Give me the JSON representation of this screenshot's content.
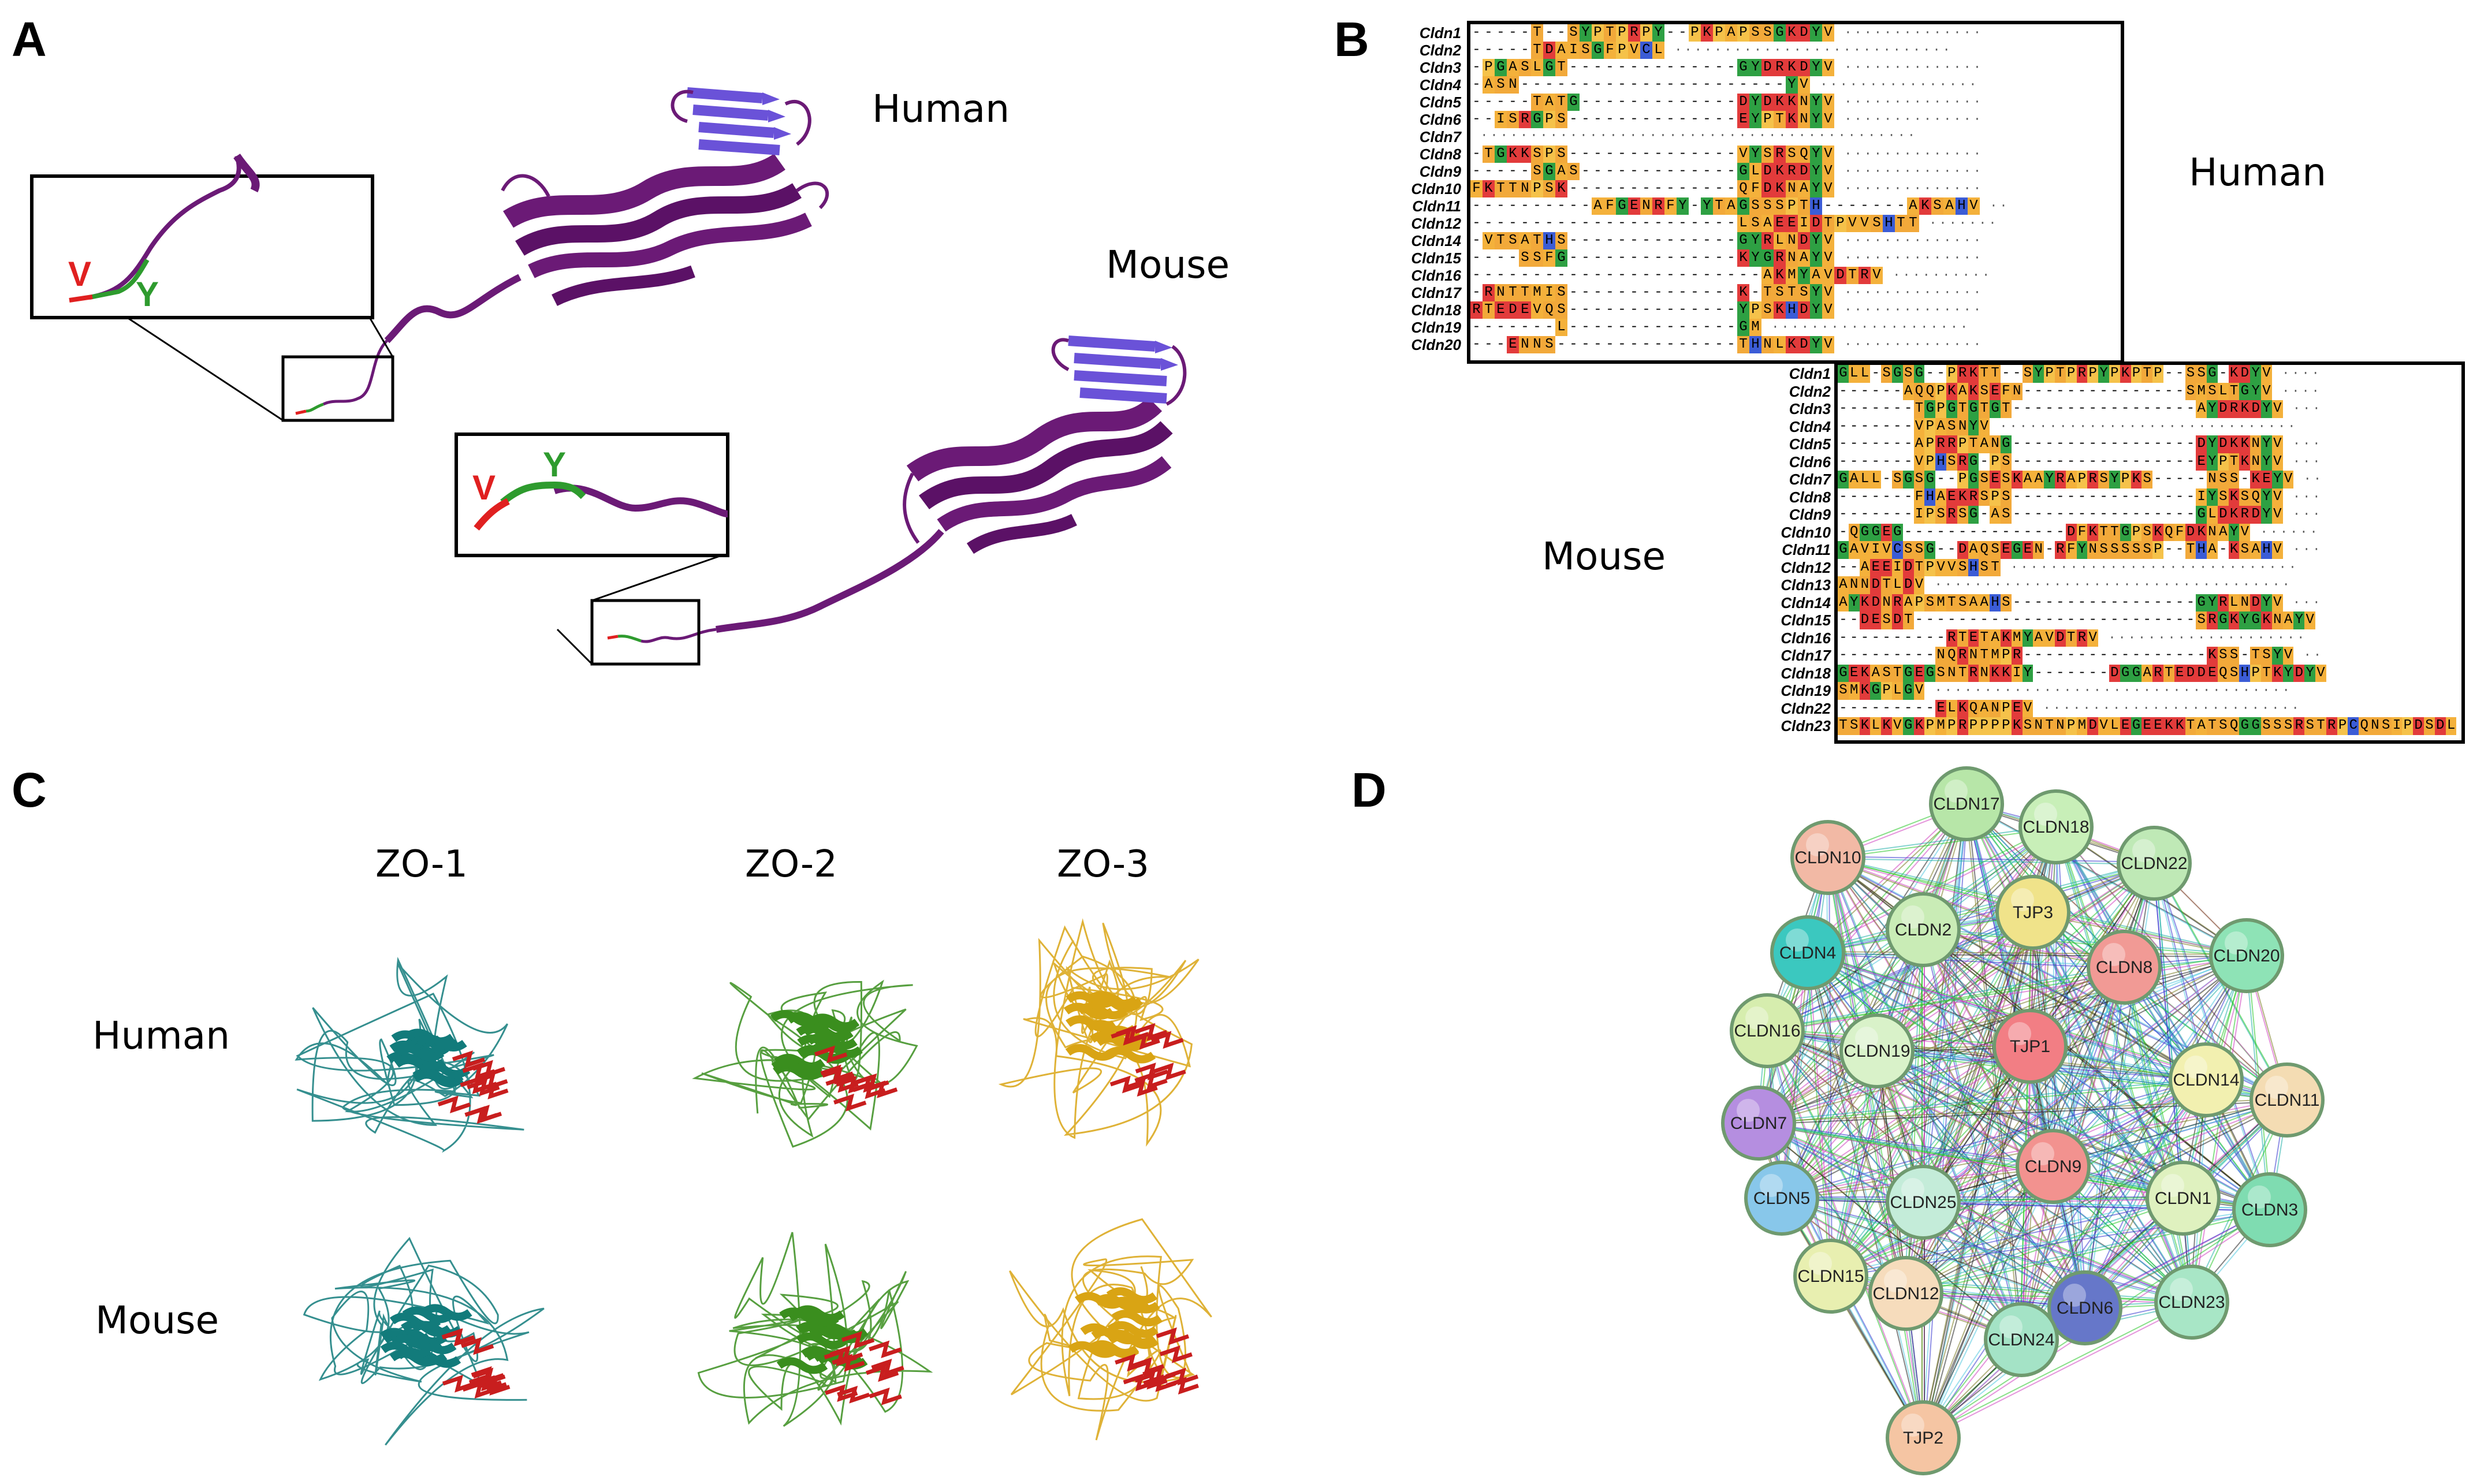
{
  "panels": {
    "A": "A",
    "B": "B",
    "C": "C",
    "D": "D"
  },
  "panel_a": {
    "human_label": "Human",
    "mouse_label": "Mouse",
    "inset_human": {
      "v": "V",
      "y": "Y"
    },
    "inset_mouse": {
      "v": "V",
      "y": "Y"
    }
  },
  "panel_b": {
    "human_label": "Human",
    "mouse_label": "Mouse",
    "human_rows": [
      {
        "name": "Cldn1",
        "seq": "-----T--SYPTPRPY--PKPAPSSGKDYV"
      },
      {
        "name": "Cldn2",
        "seq": "-----TDAISGFPVCL"
      },
      {
        "name": "Cldn3",
        "seq": "-PGASLGT--------------GYDRKDYV"
      },
      {
        "name": "Cldn4",
        "seq": "-ASN----------------------YV"
      },
      {
        "name": "Cldn5",
        "seq": "-----TATG-------------DYDKKNYV"
      },
      {
        "name": "Cldn6",
        "seq": "--ISRGPS--------------EYPTKNYV"
      },
      {
        "name": "Cldn7",
        "seq": ""
      },
      {
        "name": "Cldn8",
        "seq": "-TGKKSPS--------------VYSRSQYV"
      },
      {
        "name": "Cldn9",
        "seq": "-----SGAS-------------GLDKRDYV"
      },
      {
        "name": "Cldn10",
        "seq": "FKTTNPSK--------------QFDKNAYV"
      },
      {
        "name": "Cldn11",
        "seq": "----------AFGENRFY-YTAGSSSPTH-------AKSAHV"
      },
      {
        "name": "Cldn12",
        "seq": "----------------------LSAEEIDTPVVSHTT"
      },
      {
        "name": "Cldn14",
        "seq": "-VTSATHS--------------GYRLNDYV"
      },
      {
        "name": "Cldn15",
        "seq": "----SSFG--------------KYGRNAYV"
      },
      {
        "name": "Cldn16",
        "seq": "------------------------AKMYAVDTRV"
      },
      {
        "name": "Cldn17",
        "seq": "-RNTTMIS--------------K-TSTSYV"
      },
      {
        "name": "Cldn18",
        "seq": "RTEDEVQS--------------YPSKHDYV"
      },
      {
        "name": "Cldn19",
        "seq": "-------L--------------GM"
      },
      {
        "name": "Cldn20",
        "seq": "---ENNS---------------THNLKDYV"
      }
    ],
    "mouse_rows": [
      {
        "name": "Cldn1",
        "seq": "GLL-SGSG--PRKTT--SYPTPRPYPKPTP--SSG-KDYV"
      },
      {
        "name": "Cldn2",
        "seq": "------AQQPKAKSEFN---------------SMSLTGYV"
      },
      {
        "name": "Cldn3",
        "seq": "-------TGPGTGTGT-----------------AYDRKDYV"
      },
      {
        "name": "Cldn4",
        "seq": "-------VPASNYV"
      },
      {
        "name": "Cldn5",
        "seq": "-------APRRPTANG-----------------DYDKKNYV"
      },
      {
        "name": "Cldn6",
        "seq": "-------VPHSRG-PS-----------------EYPTKNYV"
      },
      {
        "name": "Cldn7",
        "seq": "GALL-SGSG--PGSESKAAYRAPRSYPKS-----NSS-KEYV"
      },
      {
        "name": "Cldn8",
        "seq": "-------FHAEKRSPS-----------------IYSKSQYV"
      },
      {
        "name": "Cldn9",
        "seq": "-------IPSRSG-AS-----------------GLDKRDYV"
      },
      {
        "name": "Cldn10",
        "seq": "-QGGEG---------------DFKTTGPSKQFDKNAYV"
      },
      {
        "name": "Cldn11",
        "seq": "GAVIVCSSG--DAQSEGEN-RFYNSSSSSP--THA-KSAHV"
      },
      {
        "name": "Cldn12",
        "seq": "--AEEIDTPVVSHST"
      },
      {
        "name": "Cldn13",
        "seq": "ANNDTLDV"
      },
      {
        "name": "Cldn14",
        "seq": "AYKDNRAPSMTSAAHS-----------------GYRLNDYV"
      },
      {
        "name": "Cldn15",
        "seq": "--DESDT--------------------------SRGKYGKNAYV"
      },
      {
        "name": "Cldn16",
        "seq": "----------RTETAKMYAVDTRV"
      },
      {
        "name": "Cldn17",
        "seq": "---------NQRNTMPR-----------------KSS-TSYV"
      },
      {
        "name": "Cldn18",
        "seq": "GEKASTGEGSNTRNKKIY-------DGGARTEDDEQSHPTKYDYV"
      },
      {
        "name": "Cldn19",
        "seq": "SMKGPLGV"
      },
      {
        "name": "Cldn22",
        "seq": "---------ELKQANPEV"
      },
      {
        "name": "Cldn23",
        "seq": "TSKLKVGKPMPRPPPPKSNTNPMDVLEGEEKKTATSQGGSSSRSTRPCQNSIPDSDL"
      }
    ]
  },
  "panel_c": {
    "columns": [
      "ZO-1",
      "ZO-2",
      "ZO-3"
    ],
    "rows": [
      "Human",
      "Mouse"
    ],
    "colors": {
      "zo1": "#127b7b",
      "zo2": "#3a8e1e",
      "zo3": "#d9a414",
      "pdz": "#c81e1e"
    }
  },
  "panel_d": {
    "nodes": [
      {
        "id": "CLDN17",
        "color": "#b7e6a8"
      },
      {
        "id": "CLDN18",
        "color": "#c8efb8"
      },
      {
        "id": "CLDN10",
        "color": "#f2b9a5"
      },
      {
        "id": "CLDN22",
        "color": "#bfe9b6"
      },
      {
        "id": "TJP3",
        "color": "#f0e38a"
      },
      {
        "id": "CLDN2",
        "color": "#c9ecb6"
      },
      {
        "id": "CLDN4",
        "color": "#3bc8bf"
      },
      {
        "id": "CLDN20",
        "color": "#8ee3b6"
      },
      {
        "id": "CLDN8",
        "color": "#f19a95"
      },
      {
        "id": "CLDN16",
        "color": "#d6edae"
      },
      {
        "id": "CLDN19",
        "color": "#d9f2c9"
      },
      {
        "id": "TJP1",
        "color": "#f27e84"
      },
      {
        "id": "CLDN14",
        "color": "#f2f0b0"
      },
      {
        "id": "CLDN11",
        "color": "#f4dcb3"
      },
      {
        "id": "CLDN7",
        "color": "#b58ee0"
      },
      {
        "id": "CLDN9",
        "color": "#f2928f"
      },
      {
        "id": "CLDN1",
        "color": "#dff1bf"
      },
      {
        "id": "CLDN5",
        "color": "#88c7ea"
      },
      {
        "id": "CLDN25",
        "color": "#c4ecd9"
      },
      {
        "id": "CLDN3",
        "color": "#7fdcb1"
      },
      {
        "id": "CLDN15",
        "color": "#e8efb0"
      },
      {
        "id": "CLDN12",
        "color": "#f6dcbc"
      },
      {
        "id": "CLDN6",
        "color": "#6677c9"
      },
      {
        "id": "CLDN23",
        "color": "#a8e6c6"
      },
      {
        "id": "CLDN24",
        "color": "#a4e3c6"
      },
      {
        "id": "TJP2",
        "color": "#f5c5a3"
      }
    ],
    "edge_colors": [
      "#3a3ad0",
      "#20b0a8",
      "#28c828",
      "#d040c0",
      "#7a7a20",
      "#202020",
      "#50c8e0"
    ]
  },
  "colors": {
    "ribbon": "#6b1a76",
    "sheet": "#6a52d8",
    "tail_red": "#e02020",
    "tail_green": "#2e9b2e"
  }
}
